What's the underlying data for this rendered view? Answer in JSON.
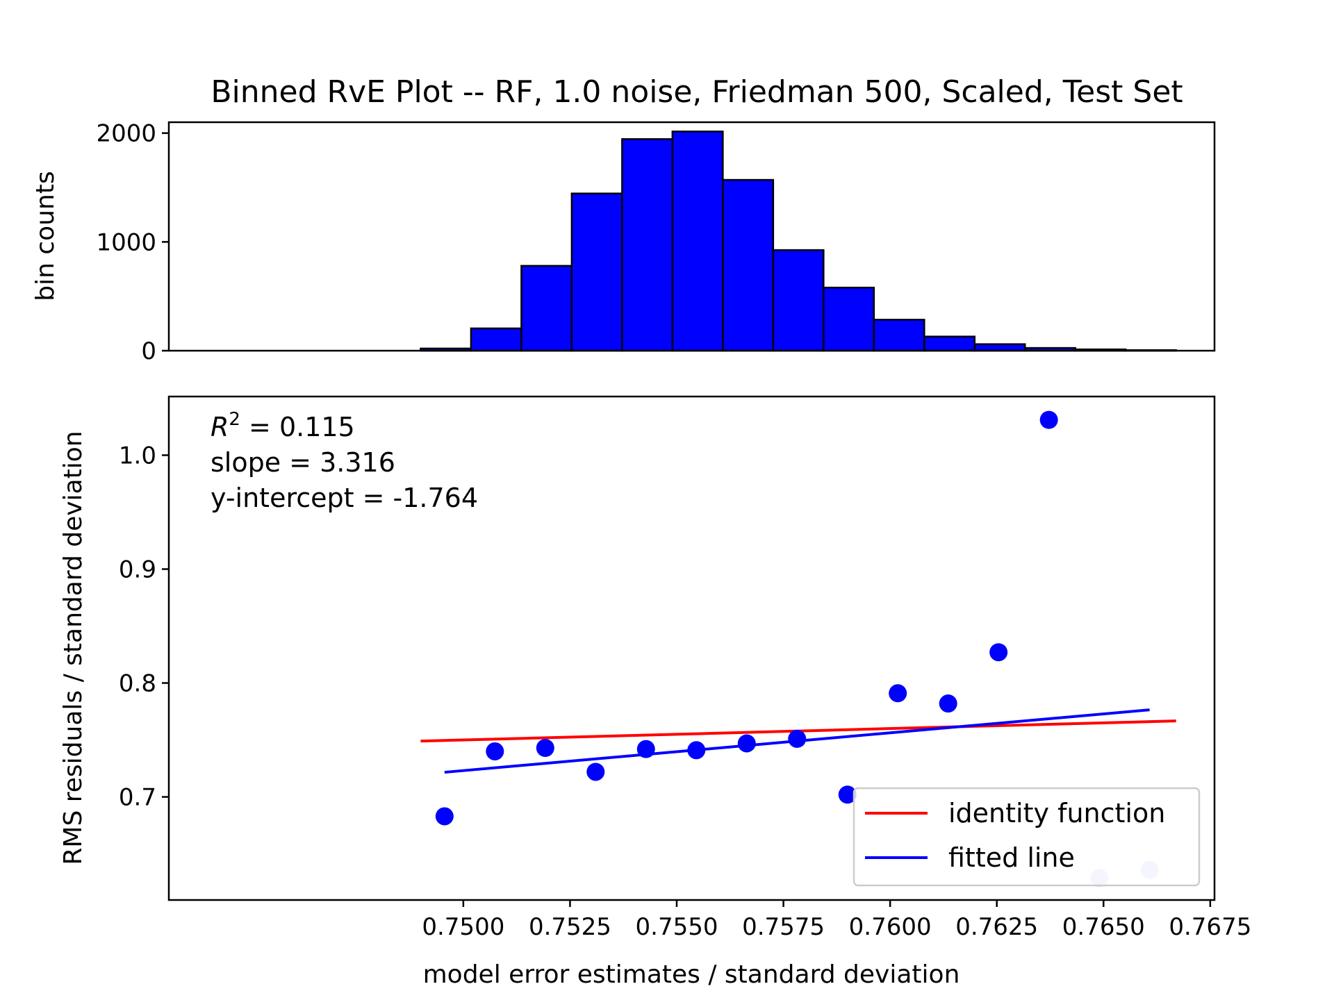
{
  "chart_data": [
    {
      "type": "bar",
      "subtype": "histogram",
      "title": "Binned RvE Plot -- RF, 1.0 noise, Friedman 500, Scaled, Test Set",
      "ylabel": "bin counts",
      "xlabel": "",
      "bin_edges": [
        0.749,
        0.75018,
        0.75136,
        0.75254,
        0.75372,
        0.7549,
        0.75608,
        0.75726,
        0.75844,
        0.75962,
        0.7608,
        0.76198,
        0.76316,
        0.76434,
        0.76552,
        0.7667
      ],
      "values": [
        20,
        205,
        780,
        1445,
        1945,
        2015,
        1570,
        925,
        580,
        285,
        130,
        60,
        25,
        12,
        5
      ],
      "ylim": [
        0,
        2100
      ],
      "yticks": [
        "0",
        "1000",
        "2000"
      ],
      "bar_color": "#0000ff",
      "edge_color": "#000000"
    },
    {
      "type": "scatter",
      "xlabel": "model error estimates / standard deviation",
      "ylabel": "RMS residuals / standard deviation",
      "xlim": [
        0.7431,
        0.7676
      ],
      "ylim": [
        0.6095,
        1.0515
      ],
      "xticks": [
        "0.7500",
        "0.7525",
        "0.7550",
        "0.7575",
        "0.7600",
        "0.7625",
        "0.7650",
        "0.7675"
      ],
      "yticks": [
        "0.7",
        "0.8",
        "0.9",
        "1.0"
      ],
      "annotations": {
        "r2_label": "R",
        "r2_sup": "2",
        "r2_value": " = 0.115",
        "slope": "slope = 3.316",
        "intercept": "y-intercept = -1.764"
      },
      "points": {
        "x": [
          0.74956,
          0.75074,
          0.75192,
          0.7531,
          0.75428,
          0.75546,
          0.75664,
          0.75782,
          0.759,
          0.76018,
          0.76136,
          0.76254,
          0.76372,
          0.7649,
          0.76608
        ],
        "y": [
          0.683,
          0.74,
          0.743,
          0.722,
          0.742,
          0.741,
          0.747,
          0.751,
          0.702,
          0.791,
          0.782,
          0.827,
          1.031,
          0.629,
          0.636
        ],
        "alpha": [
          1,
          1,
          1,
          1,
          1,
          1,
          1,
          1,
          1,
          1,
          1,
          1,
          1,
          0.2,
          0.2
        ],
        "color": "#0000ff"
      },
      "series": [
        {
          "name": "identity function",
          "color": "#ff0000",
          "x": [
            0.749,
            0.7667
          ],
          "y": [
            0.749,
            0.7667
          ]
        },
        {
          "name": "fitted line",
          "color": "#0000ff",
          "x": [
            0.74956,
            0.76608
          ],
          "y": [
            0.72164,
            0.77643
          ]
        }
      ],
      "legend_position": "lower-right"
    }
  ]
}
